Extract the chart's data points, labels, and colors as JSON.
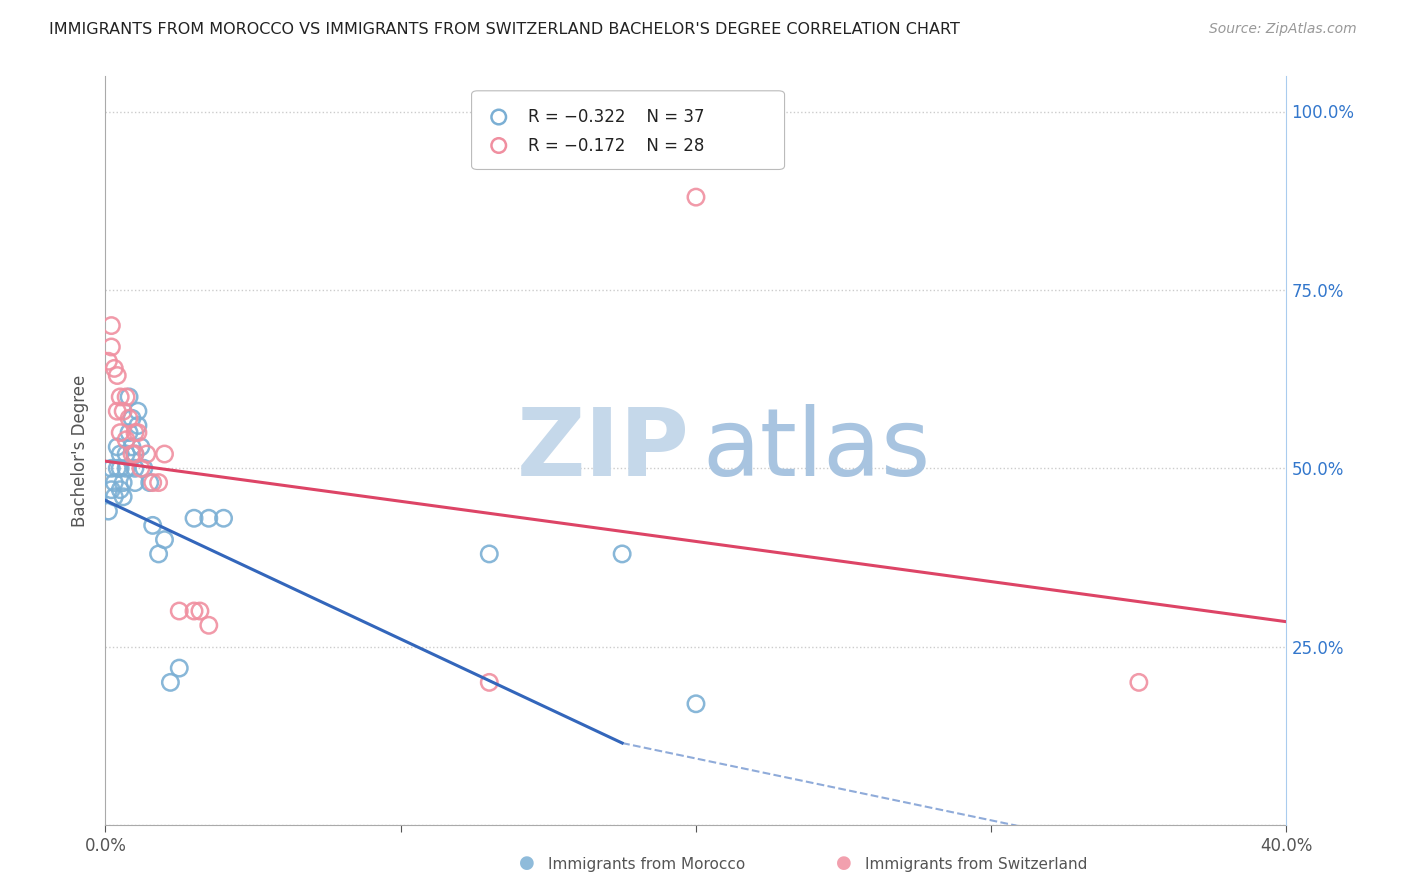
{
  "title": "IMMIGRANTS FROM MOROCCO VS IMMIGRANTS FROM SWITZERLAND BACHELOR'S DEGREE CORRELATION CHART",
  "source": "Source: ZipAtlas.com",
  "ylabel": "Bachelor's Degree",
  "legend_blue_r": "R = −0.322",
  "legend_blue_n": "N = 37",
  "legend_pink_r": "R = −0.172",
  "legend_pink_n": "N = 28",
  "morocco_x": [
    0.001,
    0.002,
    0.002,
    0.003,
    0.003,
    0.004,
    0.004,
    0.005,
    0.005,
    0.005,
    0.006,
    0.006,
    0.007,
    0.007,
    0.008,
    0.008,
    0.009,
    0.009,
    0.01,
    0.01,
    0.01,
    0.011,
    0.011,
    0.012,
    0.013,
    0.015,
    0.016,
    0.018,
    0.02,
    0.022,
    0.025,
    0.03,
    0.035,
    0.04,
    0.13,
    0.175,
    0.2
  ],
  "morocco_y": [
    0.44,
    0.5,
    0.47,
    0.48,
    0.46,
    0.5,
    0.53,
    0.52,
    0.5,
    0.47,
    0.48,
    0.46,
    0.5,
    0.52,
    0.55,
    0.6,
    0.57,
    0.53,
    0.52,
    0.5,
    0.48,
    0.56,
    0.58,
    0.53,
    0.5,
    0.48,
    0.42,
    0.38,
    0.4,
    0.2,
    0.22,
    0.43,
    0.43,
    0.43,
    0.38,
    0.38,
    0.17
  ],
  "switzerland_x": [
    0.001,
    0.002,
    0.002,
    0.003,
    0.004,
    0.004,
    0.005,
    0.005,
    0.006,
    0.007,
    0.007,
    0.008,
    0.009,
    0.01,
    0.01,
    0.011,
    0.012,
    0.014,
    0.016,
    0.018,
    0.02,
    0.025,
    0.03,
    0.032,
    0.035,
    0.13,
    0.2,
    0.35
  ],
  "switzerland_y": [
    0.65,
    0.7,
    0.67,
    0.64,
    0.63,
    0.58,
    0.6,
    0.55,
    0.58,
    0.6,
    0.54,
    0.57,
    0.52,
    0.55,
    0.52,
    0.55,
    0.5,
    0.52,
    0.48,
    0.48,
    0.52,
    0.3,
    0.3,
    0.3,
    0.28,
    0.2,
    0.88,
    0.2
  ],
  "blue_color": "#7bafd4",
  "pink_color": "#f08fa0",
  "blue_line_color": "#3366bb",
  "pink_line_color": "#dd4466",
  "watermark_zip_color": "#c5d8ea",
  "watermark_atlas_color": "#a8c4e0",
  "background_color": "#ffffff",
  "grid_color": "#cccccc",
  "xlim": [
    0.0,
    0.4
  ],
  "ylim": [
    0.0,
    1.05
  ],
  "xticks": [
    0.0,
    0.1,
    0.2,
    0.3,
    0.4
  ],
  "xticklabels": [
    "0.0%",
    "",
    "",
    "",
    "40.0%"
  ],
  "yticks_right": [
    0.0,
    0.25,
    0.5,
    0.75,
    1.0
  ],
  "yticklabels_right": [
    "",
    "25.0%",
    "50.0%",
    "75.0%",
    "100.0%"
  ]
}
